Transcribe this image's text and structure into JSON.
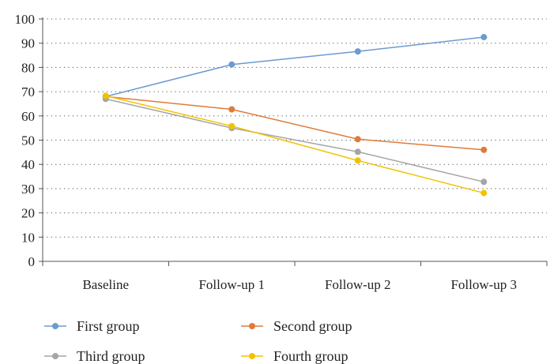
{
  "chart_data": {
    "type": "line",
    "categories": [
      "Baseline",
      "Follow-up 1",
      "Follow-up 2",
      "Follow-up 3"
    ],
    "ylim": [
      0,
      100
    ],
    "yticks": [
      0,
      10,
      20,
      30,
      40,
      50,
      60,
      70,
      80,
      90,
      100
    ],
    "grid": true,
    "legend_position": "bottom",
    "series": [
      {
        "name": "First group",
        "color": "#6B9BD1",
        "values": [
          68,
          81.2,
          86.6,
          92.5
        ]
      },
      {
        "name": "Second group",
        "color": "#E07B39",
        "values": [
          68,
          62.7,
          50.4,
          46
        ]
      },
      {
        "name": "Third group",
        "color": "#A5A5A5",
        "values": [
          67,
          55,
          45.2,
          32.8
        ]
      },
      {
        "name": "Fourth group",
        "color": "#F2C200",
        "values": [
          68.3,
          55.8,
          41.6,
          28.2
        ]
      }
    ]
  }
}
